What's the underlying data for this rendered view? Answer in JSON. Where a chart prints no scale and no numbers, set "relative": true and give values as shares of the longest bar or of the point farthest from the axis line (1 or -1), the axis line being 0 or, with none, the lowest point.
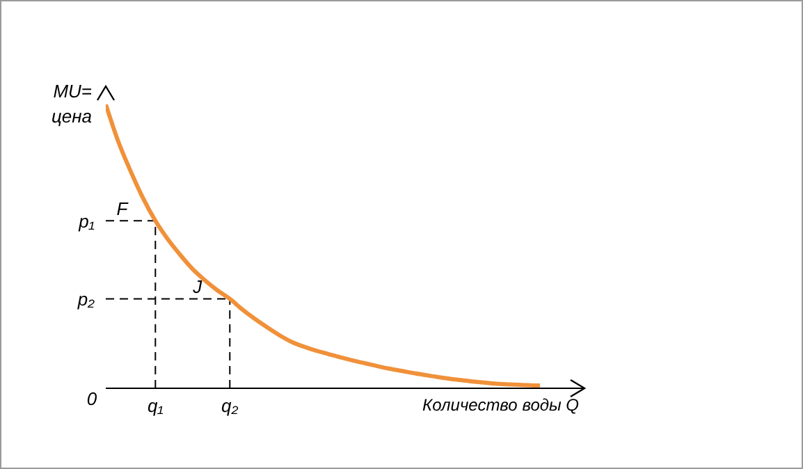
{
  "chart_data": {
    "type": "line",
    "relative": true,
    "ylabel": "MU=\nцена",
    "xlabel": "Количество воды Q",
    "categories": [
      null,
      null,
      null,
      null,
      "q₁",
      null,
      null,
      null,
      null,
      null,
      "q₂",
      null,
      null,
      null,
      null,
      null,
      null,
      null,
      null,
      null,
      null,
      null,
      null,
      null,
      null,
      null,
      null,
      null,
      null,
      null,
      null,
      null,
      null,
      null,
      null,
      null
    ],
    "series": [
      {
        "color": "#f0913a",
        "values": [
          1.0,
          0.87,
          0.765,
          0.67,
          0.59,
          0.525,
          0.47,
          0.42,
          0.38,
          0.345,
          0.315,
          0.278,
          0.245,
          0.215,
          0.187,
          0.163,
          0.146,
          0.132,
          0.12,
          0.108,
          0.097,
          0.087,
          0.077,
          0.068,
          0.06,
          0.052,
          0.045,
          0.038,
          0.032,
          0.027,
          0.022,
          0.018,
          0.015,
          0.013,
          0.011,
          0.01
        ]
      }
    ],
    "ref_lines": [
      {
        "axis": "y",
        "value": 0.59,
        "label": "p₁",
        "line_style": "dashed"
      },
      {
        "axis": "y",
        "value": 0.315,
        "label": "p₂",
        "line_style": "dashed"
      },
      {
        "axis": "x",
        "value": "q₁",
        "line_style": "dashed"
      },
      {
        "axis": "x",
        "value": "q₂",
        "line_style": "dashed"
      }
    ],
    "annotations": [
      {
        "text": "F",
        "y": 0.59
      },
      {
        "text": "J",
        "y": 0.315
      },
      "0"
    ]
  }
}
